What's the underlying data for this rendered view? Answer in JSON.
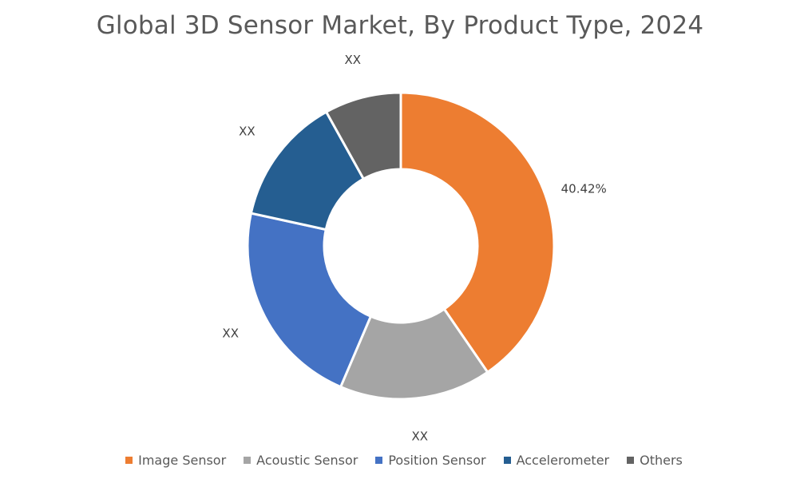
{
  "chart_data": {
    "type": "pie",
    "title": "Global 3D Sensor Market, By Product Type, 2024",
    "hole": 0.5,
    "legend_position": "bottom",
    "slices": [
      {
        "name": "Image Sensor",
        "value": 40.42,
        "label": "40.42%",
        "color": "#ED7D31"
      },
      {
        "name": "Acoustic Sensor",
        "value": 16,
        "label": "XX",
        "color": "#A5A5A5"
      },
      {
        "name": "Position Sensor",
        "value": 22,
        "label": "XX",
        "color": "#4472C4"
      },
      {
        "name": "Accelerometer",
        "value": 13.5,
        "label": "XX",
        "color": "#255E91"
      },
      {
        "name": "Others",
        "value": 8.08,
        "label": "XX",
        "color": "#636363"
      }
    ]
  }
}
